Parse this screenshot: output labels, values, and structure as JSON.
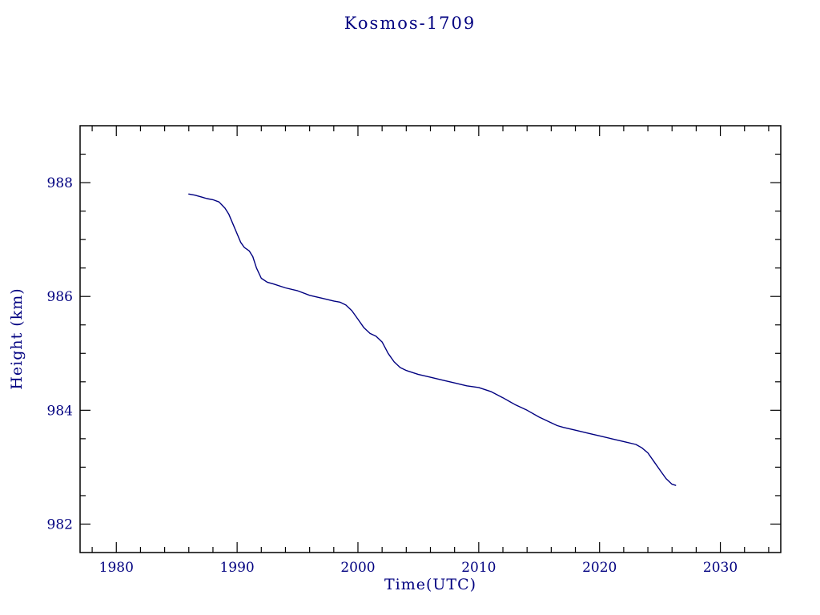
{
  "chart_data": {
    "type": "line",
    "title": "Kosmos-1709",
    "xlabel": "Time(UTC)",
    "ylabel": "Height (km)",
    "xlim": [
      1977,
      2035
    ],
    "ylim": [
      981.5,
      989.0
    ],
    "x_major_ticks": [
      1980,
      1990,
      2000,
      2010,
      2020,
      2030
    ],
    "x_minor_step": 2,
    "y_major_ticks": [
      982,
      984,
      986,
      988
    ],
    "y_minor_step": 0.5,
    "grid": false,
    "legend": false,
    "line_color": "#000080",
    "frame_color": "#000000",
    "text_color": "#000080",
    "series": [
      {
        "name": "height_km",
        "points": [
          [
            1986.0,
            987.8
          ],
          [
            1986.5,
            987.78
          ],
          [
            1987.0,
            987.75
          ],
          [
            1987.5,
            987.72
          ],
          [
            1988.0,
            987.7
          ],
          [
            1988.5,
            987.66
          ],
          [
            1989.0,
            987.55
          ],
          [
            1989.3,
            987.45
          ],
          [
            1989.6,
            987.3
          ],
          [
            1990.0,
            987.1
          ],
          [
            1990.3,
            986.95
          ],
          [
            1990.6,
            986.86
          ],
          [
            1991.0,
            986.8
          ],
          [
            1991.3,
            986.7
          ],
          [
            1991.6,
            986.5
          ],
          [
            1992.0,
            986.32
          ],
          [
            1992.5,
            986.25
          ],
          [
            1993.0,
            986.22
          ],
          [
            1994.0,
            986.15
          ],
          [
            1995.0,
            986.1
          ],
          [
            1996.0,
            986.02
          ],
          [
            1997.0,
            985.97
          ],
          [
            1998.0,
            985.92
          ],
          [
            1998.5,
            985.9
          ],
          [
            1999.0,
            985.85
          ],
          [
            1999.5,
            985.75
          ],
          [
            2000.0,
            985.6
          ],
          [
            2000.5,
            985.45
          ],
          [
            2001.0,
            985.35
          ],
          [
            2001.5,
            985.3
          ],
          [
            2002.0,
            985.2
          ],
          [
            2002.5,
            985.0
          ],
          [
            2003.0,
            984.85
          ],
          [
            2003.5,
            984.75
          ],
          [
            2004.0,
            984.7
          ],
          [
            2005.0,
            984.63
          ],
          [
            2006.0,
            984.58
          ],
          [
            2007.0,
            984.53
          ],
          [
            2008.0,
            984.48
          ],
          [
            2009.0,
            984.43
          ],
          [
            2010.0,
            984.4
          ],
          [
            2011.0,
            984.33
          ],
          [
            2012.0,
            984.22
          ],
          [
            2013.0,
            984.1
          ],
          [
            2014.0,
            984.0
          ],
          [
            2015.0,
            983.88
          ],
          [
            2016.0,
            983.78
          ],
          [
            2016.5,
            983.73
          ],
          [
            2017.0,
            983.7
          ],
          [
            2018.0,
            983.65
          ],
          [
            2019.0,
            983.6
          ],
          [
            2020.0,
            983.55
          ],
          [
            2021.0,
            983.5
          ],
          [
            2022.0,
            983.45
          ],
          [
            2023.0,
            983.4
          ],
          [
            2023.5,
            983.34
          ],
          [
            2024.0,
            983.25
          ],
          [
            2024.5,
            983.1
          ],
          [
            2025.0,
            982.95
          ],
          [
            2025.5,
            982.8
          ],
          [
            2026.0,
            982.7
          ],
          [
            2026.3,
            982.68
          ]
        ]
      }
    ]
  }
}
